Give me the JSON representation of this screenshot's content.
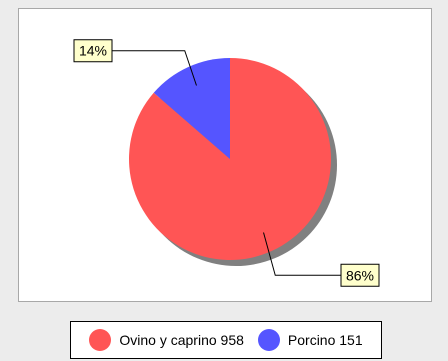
{
  "chart_data": {
    "type": "pie",
    "title": "",
    "slices": [
      {
        "label": "Ovino y caprino",
        "value": 958,
        "percent_label": "86%",
        "color": "#ff5555"
      },
      {
        "label": "Porcino",
        "value": 151,
        "percent_label": "14%",
        "color": "#5555ff"
      }
    ],
    "legend_placement": "bottom"
  },
  "legend": {
    "items": [
      {
        "text": "Ovino y caprino 958",
        "color": "#ff5555"
      },
      {
        "text": "Porcino 151",
        "color": "#5555ff"
      }
    ]
  },
  "colors": {
    "shadow": "#808080",
    "label_background": "#ffffcc",
    "panel_background": "#ffffff",
    "page_background": "#ececec"
  }
}
